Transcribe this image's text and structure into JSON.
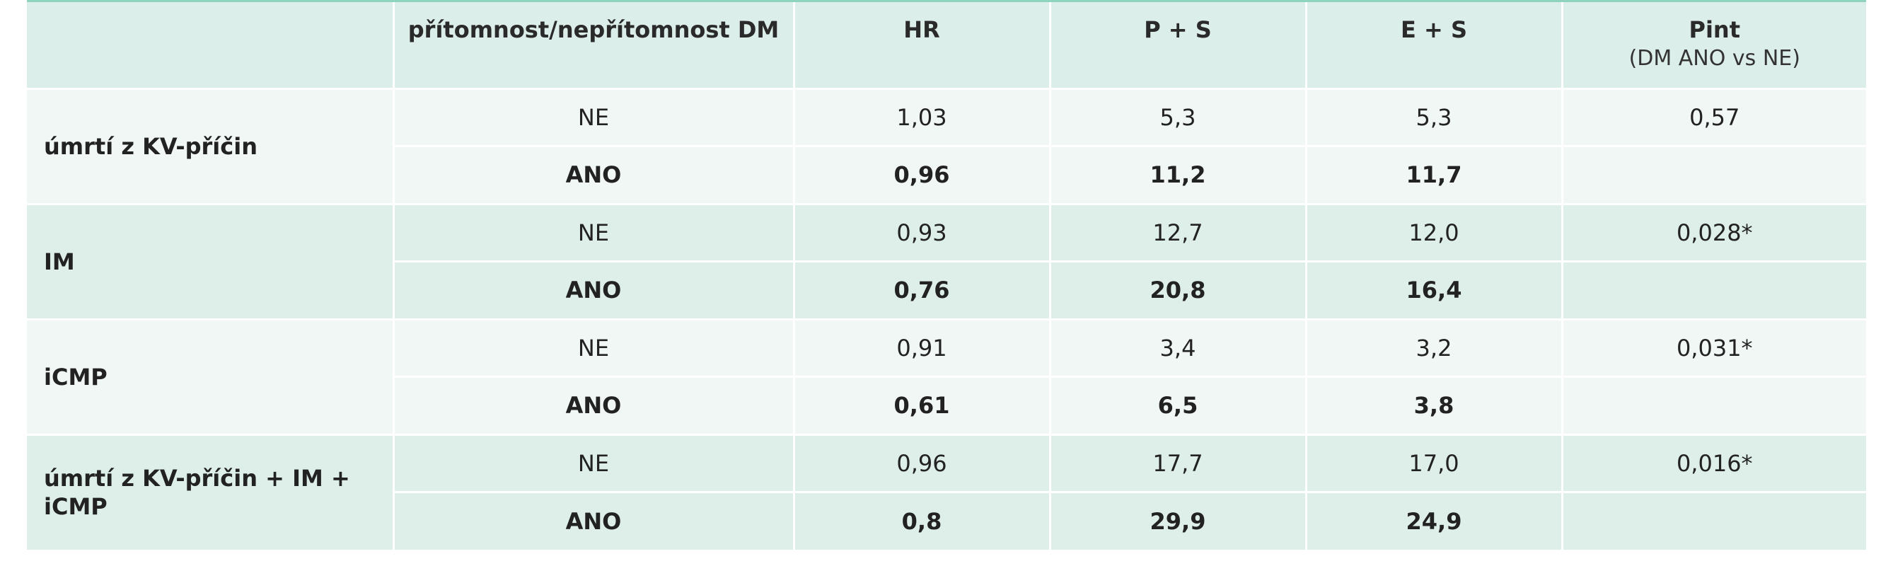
{
  "table": {
    "headers": {
      "endpoint": "",
      "dm": "přítomnost/nepřítomnost DM",
      "hr": "HR",
      "ps": "P + S",
      "es": "E + S",
      "pint": "Pint",
      "pint_sub": "(DM ANO vs NE)"
    },
    "groups": [
      {
        "endpoint": "úmrtí z KV-příčin",
        "pint": "0,57",
        "ne": {
          "dm": "NE",
          "hr": "1,03",
          "ps": "5,3",
          "es": "5,3"
        },
        "ano": {
          "dm": "ANO",
          "hr": "0,96",
          "ps": "11,2",
          "es": "11,7"
        }
      },
      {
        "endpoint": "IM",
        "pint": "0,028*",
        "ne": {
          "dm": "NE",
          "hr": "0,93",
          "ps": "12,7",
          "es": "12,0"
        },
        "ano": {
          "dm": "ANO",
          "hr": "0,76",
          "ps": "20,8",
          "es": "16,4"
        }
      },
      {
        "endpoint": "iCMP",
        "pint": "0,031*",
        "ne": {
          "dm": "NE",
          "hr": "0,91",
          "ps": "3,4",
          "es": "3,2"
        },
        "ano": {
          "dm": "ANO",
          "hr": "0,61",
          "ps": "6,5",
          "es": "3,8"
        }
      },
      {
        "endpoint": "úmrtí z KV-příčin + IM + iCMP",
        "pint": "0,016*",
        "ne": {
          "dm": "NE",
          "hr": "0,96",
          "ps": "17,7",
          "es": "17,0"
        },
        "ano": {
          "dm": "ANO",
          "hr": "0,8",
          "ps": "29,9",
          "es": "24,9"
        }
      }
    ]
  }
}
